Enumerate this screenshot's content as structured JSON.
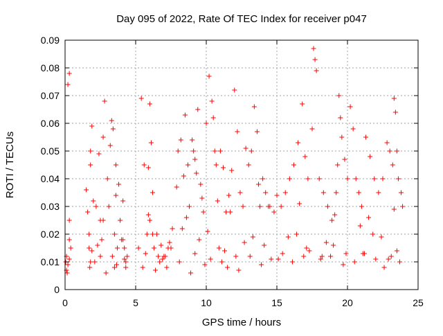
{
  "colors": {
    "marker": "#ff0000",
    "grid": "#a0a0a0",
    "axis": "#000000",
    "background": "#ffffff"
  },
  "chart_data": {
    "type": "scatter",
    "title": "Day 095 of 2022, Rate Of TEC Index for receiver p047",
    "xlabel": "GPS time / hours",
    "ylabel": "ROTI / TECUs",
    "xlim": [
      0,
      25
    ],
    "ylim": [
      0,
      0.09
    ],
    "xticks": [
      0,
      5,
      10,
      15,
      20,
      25
    ],
    "yticks": [
      0,
      0.01,
      0.02,
      0.03,
      0.04,
      0.05,
      0.06,
      0.07,
      0.08,
      0.09
    ],
    "xtick_labels": [
      "0",
      "5",
      "10",
      "15",
      "20",
      "25"
    ],
    "ytick_labels": [
      "0",
      "0.01",
      "0.02",
      "0.03",
      "0.04",
      "0.05",
      "0.06",
      "0.07",
      "0.08",
      "0.09"
    ],
    "grid": true,
    "marker": "+",
    "series": [
      {
        "name": "ROTI",
        "x": [
          0.1,
          0.2,
          0.3,
          0.3,
          0.3,
          0.2,
          0.4,
          0.1,
          0.3,
          1.5,
          1.6,
          1.7,
          1.8,
          1.8,
          1.9,
          2.0,
          1.7,
          1.8,
          2.2,
          2.4,
          2.5,
          2.6,
          2.7,
          2.8,
          2.5,
          3.0,
          3.1,
          3.2,
          3.3,
          3.4,
          3.5,
          3.6,
          3.6,
          3.7,
          3.8,
          3.5,
          3.9,
          4.0,
          4.1,
          4.2,
          4.3,
          4.4,
          4.3,
          5.2,
          5.4,
          5.6,
          5.8,
          5.9,
          6.0,
          6.1,
          6.2,
          6.3,
          6.0,
          6.5,
          6.6,
          6.7,
          6.8,
          7.0,
          7.2,
          7.4,
          7.6,
          7.5,
          7.9,
          8.0,
          8.2,
          8.4,
          8.5,
          8.7,
          8.8,
          9.0,
          9.1,
          9.2,
          9.3,
          9.4,
          9.6,
          9.7,
          9.8,
          10.0,
          10.2,
          10.4,
          10.5,
          10.6,
          10.7,
          10.8,
          10.9,
          11.0,
          11.2,
          11.4,
          11.6,
          11.8,
          12.0,
          12.2,
          12.4,
          12.6,
          12.8,
          13.0,
          13.2,
          13.4,
          13.6,
          13.7,
          13.8,
          14.0,
          14.2,
          14.5,
          14.8,
          15.0,
          15.3,
          15.6,
          15.9,
          16.2,
          16.5,
          16.8,
          17.0,
          17.2,
          17.5,
          17.6,
          17.7,
          17.8,
          18.0,
          18.3,
          18.6,
          18.9,
          19.2,
          19.3,
          19.4,
          19.5,
          19.6,
          19.8,
          20.0,
          20.2,
          20.4,
          20.6,
          20.8,
          21.0,
          21.3,
          21.6,
          21.9,
          22.2,
          22.5,
          22.8,
          23.0,
          23.2,
          23.3,
          23.4,
          23.5,
          23.6,
          23.8,
          23.9,
          0.15,
          1.75,
          2.1,
          2.9,
          3.65,
          4.2,
          5.5,
          6.4,
          7.1,
          8.1,
          8.9,
          9.9,
          10.3,
          11.1,
          11.5,
          12.3,
          13.1,
          13.9,
          14.6,
          15.4,
          16.1,
          16.9,
          17.3,
          18.1,
          18.8,
          19.7,
          20.5,
          21.2,
          22.0,
          22.6,
          23.1,
          23.7,
          2.3,
          6.2,
          9.5,
          12.7,
          15.8,
          19.0,
          21.8,
          4.1,
          8.3,
          10.1,
          13.3,
          16.4,
          18.5,
          20.9,
          22.4,
          1.9,
          5.7,
          7.3,
          11.3,
          14.1,
          17.1,
          19.9,
          23.5,
          0.05,
          3.35,
          6.9,
          9.2,
          12.1,
          15.1,
          18.2,
          21.1,
          22.9,
          2.7,
          5.9,
          8.6,
          11.7,
          14.4,
          16.6,
          19.1,
          21.5,
          23.3
        ],
        "y": [
          0.012,
          0.009,
          0.018,
          0.025,
          0.078,
          0.074,
          0.015,
          0.007,
          0.011,
          0.036,
          0.028,
          0.015,
          0.045,
          0.05,
          0.059,
          0.032,
          0.02,
          0.01,
          0.03,
          0.049,
          0.025,
          0.018,
          0.055,
          0.068,
          0.012,
          0.04,
          0.03,
          0.052,
          0.061,
          0.058,
          0.02,
          0.045,
          0.034,
          0.015,
          0.038,
          0.008,
          0.025,
          0.018,
          0.032,
          0.015,
          0.01,
          0.012,
          0.008,
          0.015,
          0.069,
          0.045,
          0.02,
          0.044,
          0.067,
          0.053,
          0.035,
          0.015,
          0.025,
          0.02,
          0.012,
          0.01,
          0.016,
          0.012,
          0.008,
          0.017,
          0.022,
          0.015,
          0.037,
          0.05,
          0.054,
          0.041,
          0.063,
          0.045,
          0.03,
          0.054,
          0.05,
          0.047,
          0.042,
          0.065,
          0.038,
          0.033,
          0.028,
          0.06,
          0.077,
          0.068,
          0.062,
          0.05,
          0.045,
          0.032,
          0.015,
          0.05,
          0.044,
          0.028,
          0.034,
          0.043,
          0.072,
          0.057,
          0.035,
          0.03,
          0.051,
          0.045,
          0.05,
          0.066,
          0.057,
          0.038,
          0.03,
          0.04,
          0.035,
          0.03,
          0.028,
          0.034,
          0.03,
          0.035,
          0.04,
          0.045,
          0.053,
          0.067,
          0.048,
          0.04,
          0.058,
          0.087,
          0.083,
          0.079,
          0.04,
          0.035,
          0.03,
          0.025,
          0.035,
          0.045,
          0.07,
          0.062,
          0.055,
          0.047,
          0.04,
          0.066,
          0.058,
          0.04,
          0.035,
          0.03,
          0.055,
          0.048,
          0.04,
          0.035,
          0.04,
          0.053,
          0.05,
          0.045,
          0.069,
          0.064,
          0.05,
          0.04,
          0.035,
          0.03,
          0.006,
          0.008,
          0.01,
          0.006,
          0.009,
          0.011,
          0.008,
          0.007,
          0.012,
          0.01,
          0.006,
          0.009,
          0.011,
          0.01,
          0.008,
          0.007,
          0.012,
          0.009,
          0.011,
          0.013,
          0.01,
          0.012,
          0.014,
          0.011,
          0.012,
          0.009,
          0.01,
          0.013,
          0.011,
          0.008,
          0.012,
          0.01,
          0.016,
          0.02,
          0.018,
          0.017,
          0.019,
          0.016,
          0.02,
          0.018,
          0.022,
          0.021,
          0.019,
          0.02,
          0.017,
          0.023,
          0.019,
          0.014,
          0.013,
          0.015,
          0.014,
          0.016,
          0.015,
          0.013,
          0.014,
          0.01,
          0.012,
          0.011,
          0.013,
          0.012,
          0.011,
          0.012,
          0.013,
          0.011,
          0.025,
          0.027,
          0.026,
          0.028,
          0.03,
          0.031,
          0.027,
          0.026,
          0.029
        ]
      }
    ]
  }
}
